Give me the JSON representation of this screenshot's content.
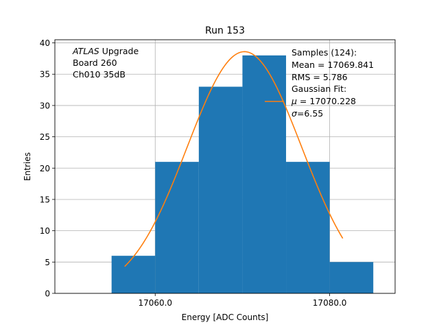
{
  "chart_data": {
    "type": "bar",
    "title": "Run 153",
    "xlabel": "Energy [ADC Counts]",
    "ylabel": "Entries",
    "xlim": [
      17048.5,
      17087.5
    ],
    "ylim": [
      0,
      40.5
    ],
    "grid": true,
    "x_ticks": [
      17060,
      17080
    ],
    "x_tick_labels": [
      "17060.0",
      "17080.0"
    ],
    "y_ticks": [
      0,
      5,
      10,
      15,
      20,
      25,
      30,
      35,
      40
    ],
    "y_tick_labels": [
      "0",
      "5",
      "10",
      "15",
      "20",
      "25",
      "30",
      "35",
      "40"
    ],
    "bins": [
      {
        "x0": 17055,
        "x1": 17060,
        "count": 6
      },
      {
        "x0": 17060,
        "x1": 17065,
        "count": 21
      },
      {
        "x0": 17065,
        "x1": 17070,
        "count": 33
      },
      {
        "x0": 17070,
        "x1": 17075,
        "count": 38
      },
      {
        "x0": 17075,
        "x1": 17080,
        "count": 21
      },
      {
        "x0": 17080,
        "x1": 17085,
        "count": 5
      }
    ],
    "fit": {
      "mu": 17070.228,
      "sigma": 6.55,
      "amplitude": 38.6,
      "x_range": [
        17056.5,
        17081.5
      ]
    },
    "annotation_lines": [
      {
        "italic": "ATLAS",
        "rest": " Upgrade"
      },
      {
        "italic": "",
        "rest": " Board 260"
      },
      {
        "italic": "",
        "rest": " Ch010 35dB"
      }
    ],
    "legend": {
      "placement": "top-right",
      "samples_lines": [
        "Samples (124):",
        " Mean = 17069.841",
        " RMS = 5.786"
      ],
      "fit_title": "Gaussian Fit:",
      "fit_mu_symbol": "μ",
      "fit_mu_value": " = 17070.228",
      "fit_sigma_symbol": "σ",
      "fit_sigma_value": "=6.55"
    },
    "colors": {
      "bar": "#1f77b4",
      "fit_line": "#ff7f0e",
      "grid": "#b0b0b0"
    }
  }
}
